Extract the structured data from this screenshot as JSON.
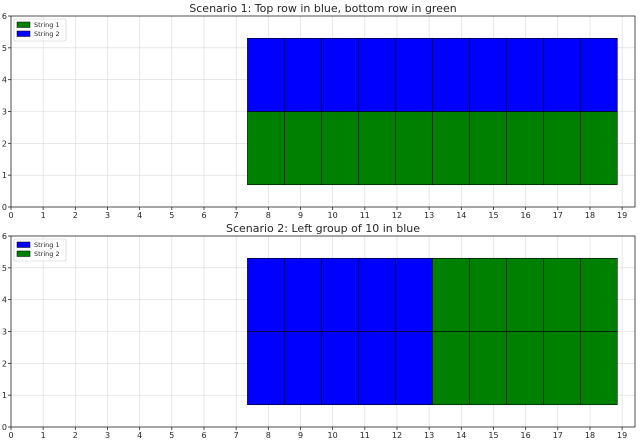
{
  "chart_data": [
    {
      "type": "bar",
      "title": "Scenario 1: Top row in blue, bottom row in green",
      "xlabel": "",
      "ylabel": "",
      "xlim": [
        0,
        19.4
      ],
      "ylim": [
        0,
        6
      ],
      "xticks": [
        "0",
        "1",
        "2",
        "3",
        "4",
        "5",
        "6",
        "7",
        "8",
        "9",
        "10",
        "11",
        "12",
        "13",
        "14",
        "15",
        "16",
        "17",
        "18",
        "19"
      ],
      "yticks": [
        "0",
        "1",
        "2",
        "3",
        "4",
        "5",
        "6"
      ],
      "grid": true,
      "legend_position": "top-left",
      "legend": [
        {
          "label": "String 1",
          "color": "#008000"
        },
        {
          "label": "String 2",
          "color": "#0000ff"
        }
      ],
      "x_edges": [
        7.35,
        8.5,
        9.65,
        10.8,
        11.95,
        13.1,
        14.25,
        15.4,
        16.55,
        17.7,
        18.85
      ],
      "rows": [
        {
          "name": "bottom",
          "y0": 0.7,
          "y1": 3.0
        },
        {
          "name": "top",
          "y0": 3.0,
          "y1": 5.3
        }
      ],
      "cells": [
        {
          "row": 0,
          "col": 0,
          "series": "String 1"
        },
        {
          "row": 0,
          "col": 1,
          "series": "String 1"
        },
        {
          "row": 0,
          "col": 2,
          "series": "String 1"
        },
        {
          "row": 0,
          "col": 3,
          "series": "String 1"
        },
        {
          "row": 0,
          "col": 4,
          "series": "String 1"
        },
        {
          "row": 0,
          "col": 5,
          "series": "String 1"
        },
        {
          "row": 0,
          "col": 6,
          "series": "String 1"
        },
        {
          "row": 0,
          "col": 7,
          "series": "String 1"
        },
        {
          "row": 0,
          "col": 8,
          "series": "String 1"
        },
        {
          "row": 0,
          "col": 9,
          "series": "String 1"
        },
        {
          "row": 1,
          "col": 0,
          "series": "String 2"
        },
        {
          "row": 1,
          "col": 1,
          "series": "String 2"
        },
        {
          "row": 1,
          "col": 2,
          "series": "String 2"
        },
        {
          "row": 1,
          "col": 3,
          "series": "String 2"
        },
        {
          "row": 1,
          "col": 4,
          "series": "String 2"
        },
        {
          "row": 1,
          "col": 5,
          "series": "String 2"
        },
        {
          "row": 1,
          "col": 6,
          "series": "String 2"
        },
        {
          "row": 1,
          "col": 7,
          "series": "String 2"
        },
        {
          "row": 1,
          "col": 8,
          "series": "String 2"
        },
        {
          "row": 1,
          "col": 9,
          "series": "String 2"
        }
      ]
    },
    {
      "type": "bar",
      "title": "Scenario 2: Left group of 10 in blue",
      "xlabel": "",
      "ylabel": "",
      "xlim": [
        0,
        19.4
      ],
      "ylim": [
        0,
        6
      ],
      "xticks": [
        "0",
        "1",
        "2",
        "3",
        "4",
        "5",
        "6",
        "7",
        "8",
        "9",
        "10",
        "11",
        "12",
        "13",
        "14",
        "15",
        "16",
        "17",
        "18",
        "19"
      ],
      "yticks": [
        "0",
        "1",
        "2",
        "3",
        "4",
        "5",
        "6"
      ],
      "grid": true,
      "legend_position": "top-left",
      "legend": [
        {
          "label": "String 1",
          "color": "#0000ff"
        },
        {
          "label": "String 2",
          "color": "#008000"
        }
      ],
      "x_edges": [
        7.35,
        8.5,
        9.65,
        10.8,
        11.95,
        13.1,
        14.25,
        15.4,
        16.55,
        17.7,
        18.85
      ],
      "rows": [
        {
          "name": "bottom",
          "y0": 0.7,
          "y1": 3.0
        },
        {
          "name": "top",
          "y0": 3.0,
          "y1": 5.3
        }
      ],
      "cells": [
        {
          "row": 0,
          "col": 0,
          "series": "String 1"
        },
        {
          "row": 0,
          "col": 1,
          "series": "String 1"
        },
        {
          "row": 0,
          "col": 2,
          "series": "String 1"
        },
        {
          "row": 0,
          "col": 3,
          "series": "String 1"
        },
        {
          "row": 0,
          "col": 4,
          "series": "String 1"
        },
        {
          "row": 1,
          "col": 0,
          "series": "String 1"
        },
        {
          "row": 1,
          "col": 1,
          "series": "String 1"
        },
        {
          "row": 1,
          "col": 2,
          "series": "String 1"
        },
        {
          "row": 1,
          "col": 3,
          "series": "String 1"
        },
        {
          "row": 1,
          "col": 4,
          "series": "String 1"
        },
        {
          "row": 0,
          "col": 5,
          "series": "String 2"
        },
        {
          "row": 0,
          "col": 6,
          "series": "String 2"
        },
        {
          "row": 0,
          "col": 7,
          "series": "String 2"
        },
        {
          "row": 0,
          "col": 8,
          "series": "String 2"
        },
        {
          "row": 0,
          "col": 9,
          "series": "String 2"
        },
        {
          "row": 1,
          "col": 5,
          "series": "String 2"
        },
        {
          "row": 1,
          "col": 6,
          "series": "String 2"
        },
        {
          "row": 1,
          "col": 7,
          "series": "String 2"
        },
        {
          "row": 1,
          "col": 8,
          "series": "String 2"
        },
        {
          "row": 1,
          "col": 9,
          "series": "String 2"
        }
      ]
    }
  ]
}
